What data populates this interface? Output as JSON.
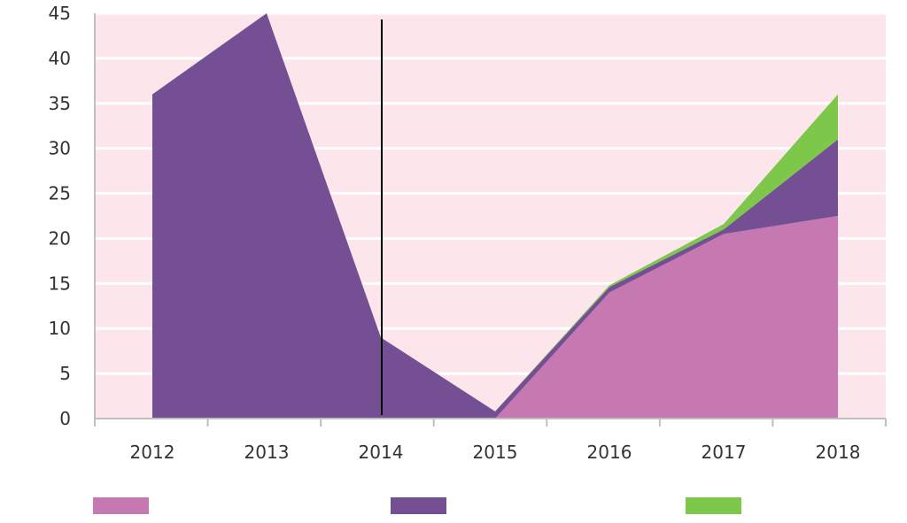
{
  "chart_data": {
    "type": "area",
    "stacked": true,
    "title": "",
    "xlabel": "",
    "ylabel": "",
    "categories": [
      "2012",
      "2013",
      "2014",
      "2015",
      "2016",
      "2017",
      "2018"
    ],
    "ylim": [
      0,
      45
    ],
    "y_ticks": [
      "0",
      "5",
      "10",
      "15",
      "20",
      "25",
      "30",
      "35",
      "40",
      "45"
    ],
    "grid": true,
    "legend_position": "bottom",
    "marker_line_category": "2014",
    "series": [
      {
        "color": "#c678b0",
        "values": [
          0,
          0,
          0,
          0,
          14,
          20.5,
          22.5
        ]
      },
      {
        "color": "#744f94",
        "values": [
          36,
          45,
          9,
          0.8,
          0.6,
          0.5,
          8.5
        ]
      },
      {
        "color": "#7dc84a",
        "values": [
          0,
          0,
          0,
          0,
          0.2,
          0.6,
          5
        ]
      }
    ],
    "plot_background": "#fce6ec",
    "gridline_color": "#ffffff"
  }
}
